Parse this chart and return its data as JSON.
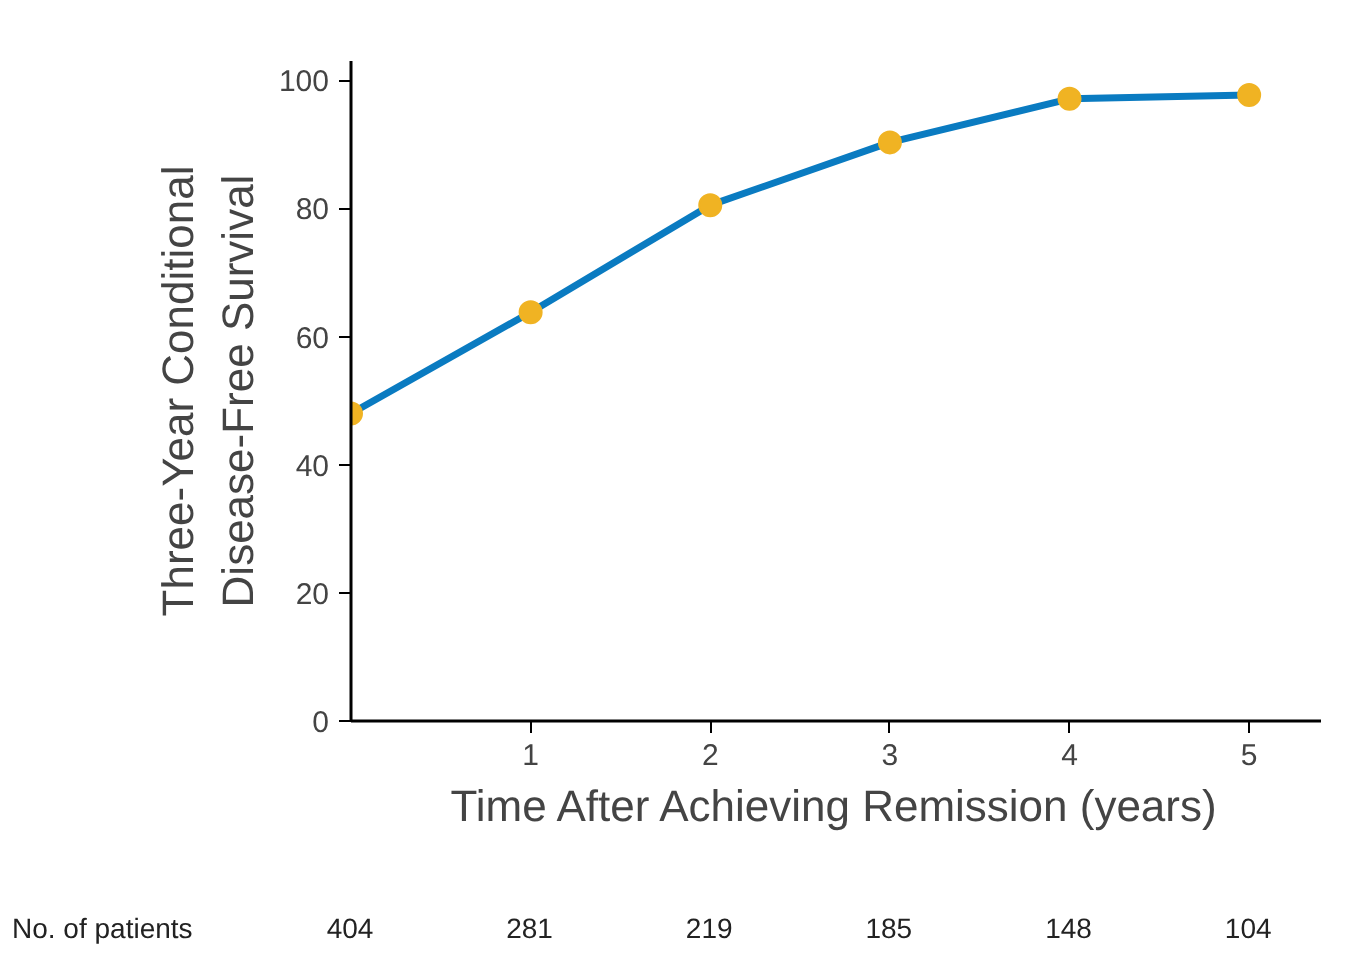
{
  "chart_data": {
    "type": "line",
    "xlabel": "Time After Achieving Remission (years)",
    "ylabel": "Three-Year Conditional\nDisease-Free Survival",
    "x": [
      0,
      1,
      2,
      3,
      4,
      5
    ],
    "series": [
      {
        "color": "#0a7bc1",
        "values": [
          48,
          63.8,
          80.5,
          90.3,
          97.1,
          97.7
        ],
        "colors": [
          "#f0b323",
          "#f0b323",
          "#f0b323",
          "#f0b323",
          "#f0b323",
          "#f0b323"
        ]
      }
    ],
    "marker": "circle",
    "line_style": "solid",
    "grid": false,
    "xlim": [
      0,
      5.4
    ],
    "xticks": [
      1,
      2,
      3,
      4,
      5
    ],
    "ylim": [
      0,
      103
    ],
    "yticks": [
      0,
      20,
      40,
      60,
      80,
      100
    ],
    "annotations": [
      "No. of patients",
      "404",
      "281",
      "219",
      "185",
      "148",
      "104"
    ]
  }
}
